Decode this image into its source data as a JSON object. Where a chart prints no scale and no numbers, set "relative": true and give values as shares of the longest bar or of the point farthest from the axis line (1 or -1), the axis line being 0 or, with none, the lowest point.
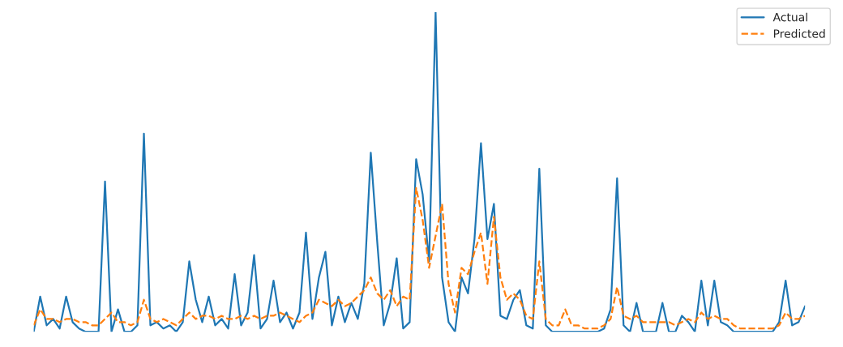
{
  "chart_data": {
    "type": "line",
    "relative": true,
    "legend": "top right",
    "categories": [
      null,
      null,
      null,
      null,
      null,
      null,
      null,
      null,
      null,
      null,
      null,
      null,
      null,
      null,
      null,
      null,
      null,
      null,
      null,
      null,
      null,
      null,
      null,
      null,
      null,
      null,
      null,
      null,
      null,
      null,
      null,
      null,
      null,
      null,
      null,
      null,
      null,
      null,
      null,
      null,
      null,
      null,
      null,
      null,
      null,
      null,
      null,
      null,
      null,
      null,
      null,
      null,
      null,
      null,
      null,
      null,
      null,
      null,
      null,
      null,
      null,
      null,
      null,
      null,
      null,
      null,
      null,
      null,
      null,
      null,
      null,
      null,
      null,
      null,
      null,
      null,
      null,
      null,
      null,
      null,
      null,
      null,
      null,
      null,
      null,
      null,
      null,
      null,
      null,
      null,
      null,
      null,
      null,
      null,
      null,
      null,
      null,
      null,
      null,
      null,
      null,
      null,
      null,
      null,
      null,
      null,
      null,
      null,
      null,
      null,
      null,
      null,
      null,
      null,
      null,
      null,
      null,
      null,
      null,
      null
    ],
    "series": [
      {
        "name": "Actual",
        "color": "#1f77b4",
        "line_style": "solid",
        "values": [
          0,
          0.11,
          0.02,
          0.04,
          0.01,
          0.11,
          0.03,
          0.01,
          0,
          0,
          0,
          0.47,
          0,
          0.07,
          0,
          0,
          0.02,
          0.62,
          0.02,
          0.03,
          0.01,
          0.02,
          0,
          0.03,
          0.22,
          0.1,
          0.03,
          0.11,
          0.02,
          0.04,
          0.01,
          0.18,
          0.02,
          0.06,
          0.24,
          0.01,
          0.04,
          0.16,
          0.03,
          0.06,
          0.01,
          0.06,
          0.31,
          0.04,
          0.17,
          0.25,
          0.02,
          0.11,
          0.03,
          0.09,
          0.04,
          0.15,
          0.56,
          0.28,
          0.02,
          0.09,
          0.23,
          0.01,
          0.03,
          0.54,
          0.43,
          0.22,
          1.0,
          0.17,
          0.03,
          0,
          0.17,
          0.12,
          0.29,
          0.59,
          0.29,
          0.4,
          0.05,
          0.04,
          0.1,
          0.13,
          0.02,
          0.01,
          0.51,
          0.02,
          0,
          0,
          0,
          0,
          0,
          0,
          0,
          0,
          0.01,
          0.07,
          0.48,
          0.02,
          0,
          0.09,
          0,
          0,
          0,
          0.09,
          0,
          0,
          0.05,
          0.03,
          0,
          0.16,
          0.02,
          0.16,
          0.03,
          0.02,
          0,
          0,
          0,
          0,
          0,
          0,
          0,
          0.03,
          0.16,
          0.02,
          0.03,
          0.08
        ]
      },
      {
        "name": "Predicted",
        "color": "#ff7f0e",
        "line_style": "dashed",
        "values": [
          0.02,
          0.07,
          0.04,
          0.04,
          0.03,
          0.04,
          0.04,
          0.03,
          0.03,
          0.02,
          0.02,
          0.04,
          0.06,
          0.03,
          0.03,
          0.02,
          0.03,
          0.1,
          0.04,
          0.03,
          0.04,
          0.03,
          0.02,
          0.04,
          0.06,
          0.04,
          0.05,
          0.05,
          0.04,
          0.05,
          0.04,
          0.04,
          0.05,
          0.04,
          0.05,
          0.04,
          0.05,
          0.05,
          0.06,
          0.05,
          0.04,
          0.03,
          0.05,
          0.06,
          0.1,
          0.09,
          0.08,
          0.1,
          0.08,
          0.09,
          0.11,
          0.13,
          0.17,
          0.12,
          0.1,
          0.13,
          0.08,
          0.11,
          0.1,
          0.45,
          0.35,
          0.2,
          0.3,
          0.4,
          0.15,
          0.06,
          0.2,
          0.18,
          0.25,
          0.31,
          0.15,
          0.36,
          0.17,
          0.1,
          0.12,
          0.1,
          0.05,
          0.04,
          0.22,
          0.04,
          0.02,
          0.02,
          0.07,
          0.02,
          0.02,
          0.01,
          0.01,
          0.01,
          0.02,
          0.04,
          0.14,
          0.05,
          0.04,
          0.05,
          0.03,
          0.03,
          0.03,
          0.03,
          0.03,
          0.02,
          0.03,
          0.04,
          0.03,
          0.06,
          0.04,
          0.05,
          0.04,
          0.04,
          0.02,
          0.01,
          0.01,
          0.01,
          0.01,
          0.01,
          0.01,
          0.02,
          0.06,
          0.04,
          0.04,
          0.05
        ]
      }
    ]
  }
}
